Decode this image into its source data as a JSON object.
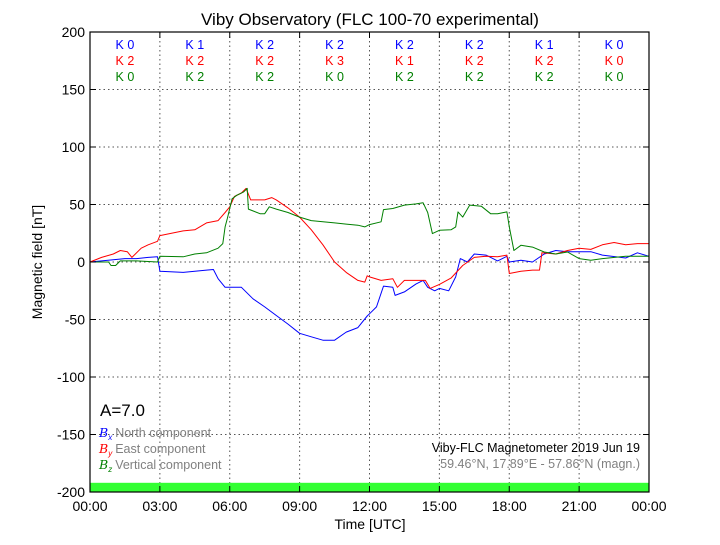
{
  "chart_data": {
    "type": "line",
    "title": "Viby Observatory (FLC 100-70 experimental)",
    "xlabel": "Time [UTC]",
    "ylabel": "Magnetic field [nT]",
    "xlim_hours": [
      0,
      24
    ],
    "ylim": [
      -200,
      200
    ],
    "grid": true,
    "x_tick_labels": [
      "00:00",
      "03:00",
      "06:00",
      "09:00",
      "12:00",
      "15:00",
      "18:00",
      "21:00",
      "00:00"
    ],
    "y_ticks": [
      -200,
      -150,
      -100,
      -50,
      0,
      50,
      100,
      150,
      200
    ],
    "series": [
      {
        "name": "North component",
        "symbol": "B",
        "subscript": "x",
        "color": "#0000ff",
        "x": [
          0,
          0.5,
          1,
          1.5,
          2,
          2.5,
          2.9,
          3.0,
          4,
          5,
          5.3,
          5.5,
          5.8,
          6.5,
          7,
          7.5,
          8,
          8.5,
          9,
          9.5,
          10,
          10.5,
          11,
          11.5,
          11.9,
          12,
          12.3,
          12.6,
          13,
          13.1,
          13.5,
          14,
          14.3,
          14.5,
          14.8,
          15,
          15.4,
          15.7,
          15.9,
          16.2,
          16.5,
          17,
          17.5,
          17.9,
          18,
          18.5,
          19,
          19.5,
          20,
          20.5,
          21,
          21.5,
          22,
          23,
          23.5,
          24
        ],
        "y": [
          0,
          1,
          2,
          3,
          3,
          4,
          4.5,
          -8,
          -9,
          -7,
          -6.5,
          -14.5,
          -22,
          -22,
          -32,
          -39,
          -46.5,
          -54,
          -62,
          -65,
          -68,
          -68,
          -61,
          -57,
          -47,
          -45,
          -39,
          -21,
          -22,
          -29,
          -26,
          -19,
          -16,
          -22,
          -25,
          -23,
          -25,
          -13,
          3,
          0,
          7,
          6,
          1,
          5,
          0,
          1.5,
          0,
          7,
          10,
          9,
          9,
          9,
          6,
          3.5,
          8,
          5
        ]
      },
      {
        "name": "East component",
        "symbol": "B",
        "subscript": "y",
        "color": "#ff0000",
        "x": [
          0,
          0.5,
          1,
          1.3,
          1.6,
          1.8,
          2.2,
          2.5,
          2.9,
          3.0,
          3.5,
          4,
          4.5,
          5,
          5.5,
          5.8,
          6,
          6.2,
          6.5,
          6.7,
          6.9,
          7.5,
          7.8,
          8,
          8.5,
          9,
          9.5,
          10,
          10.5,
          11,
          11.5,
          11.8,
          11.9,
          12,
          12.5,
          13,
          13.2,
          13.5,
          14,
          14.4,
          14.6,
          15,
          15.5,
          16,
          16.5,
          17,
          17.5,
          17.9,
          18,
          18.5,
          19,
          19.3,
          19.4,
          20,
          20.5,
          21,
          21.5,
          22,
          22.5,
          23,
          23.5,
          24
        ],
        "y": [
          0,
          4,
          7,
          10,
          9,
          4,
          12,
          15,
          18,
          23,
          25,
          27,
          28,
          34,
          36,
          43,
          48,
          57,
          60,
          64,
          54,
          54,
          56,
          54,
          47,
          39,
          28,
          15,
          0,
          -9,
          -16,
          -17.5,
          -12,
          -13,
          -16,
          -14.5,
          -22,
          -16,
          -16,
          -16,
          -23,
          -19.5,
          -14,
          -3,
          4,
          5,
          4.5,
          6,
          -10,
          -8,
          -7,
          -7,
          8,
          7,
          10,
          12,
          11,
          15,
          17,
          15,
          16,
          16
        ]
      },
      {
        "name": "Vertical component",
        "symbol": "B",
        "subscript": "z",
        "color": "#008000",
        "x": [
          0,
          0.8,
          0.9,
          1.1,
          1.3,
          2,
          2.9,
          3.0,
          4,
          4.5,
          5,
          5.5,
          5.7,
          5.8,
          5.9,
          6.1,
          6.3,
          6.6,
          6.75,
          6.8,
          7.3,
          7.5,
          7.7,
          8,
          8.5,
          9,
          9.5,
          10,
          10.5,
          11,
          11.5,
          11.8,
          12,
          12.5,
          12.6,
          13,
          13.5,
          14,
          14.3,
          14.5,
          14.7,
          15,
          15.5,
          15.7,
          15.8,
          16,
          16.3,
          16.8,
          17.2,
          17.5,
          17.9,
          18.0,
          18.2,
          18.5,
          19,
          19.5,
          20,
          20.5,
          21,
          21.5,
          22,
          23,
          24
        ],
        "y": [
          0,
          0,
          -3,
          -3,
          1,
          1,
          0,
          5,
          4.5,
          7,
          8,
          12,
          16,
          30.5,
          38,
          55,
          58,
          61,
          64,
          46,
          42,
          42,
          48,
          46,
          43,
          39,
          36,
          35,
          34,
          33,
          32,
          30.5,
          32.5,
          35,
          45.6,
          46.5,
          49.5,
          50.5,
          51.5,
          43,
          24.7,
          27.6,
          28,
          30.5,
          43.6,
          39,
          49.5,
          48.5,
          42,
          42,
          43.6,
          30.5,
          10,
          14.5,
          13,
          8.7,
          7,
          8.7,
          3,
          1.5,
          3,
          5,
          5
        ]
      }
    ],
    "k_indices": {
      "x": [
        "K 0",
        "K 1",
        "K 2",
        "K 2",
        "K 2",
        "K 2",
        "K 1",
        "K 0"
      ],
      "y": [
        "K 2",
        "K 2",
        "K 2",
        "K 3",
        "K 1",
        "K 2",
        "K 2",
        "K 0"
      ],
      "z": [
        "K 0",
        "K 2",
        "K 2",
        "K 0",
        "K 2",
        "K 2",
        "K 2",
        "K 0"
      ]
    },
    "a_index": "A=7.0",
    "station_label": "Viby-FLC Magnetometer 2019 Jun 19",
    "coords_label": "59.46°N, 17.89°E - 57.86°N (magn.)",
    "activity_band": {
      "color": "#33ff33",
      "y_range": [
        -200,
        -192
      ]
    },
    "legend_placement": "bottom-left"
  }
}
